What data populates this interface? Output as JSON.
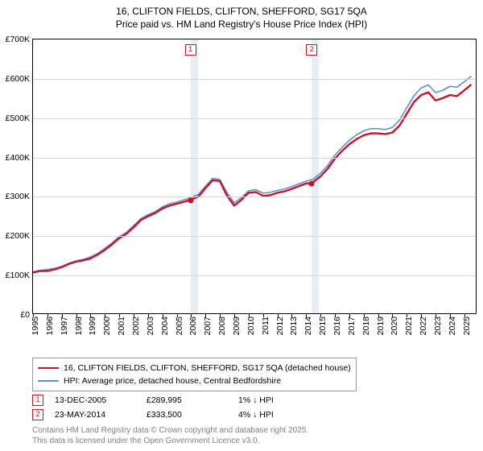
{
  "title": {
    "line1": "16, CLIFTON FIELDS, CLIFTON, SHEFFORD, SG17 5QA",
    "line2": "Price paid vs. HM Land Registry's House Price Index (HPI)"
  },
  "chart": {
    "type": "line",
    "background_color": "#ffffff",
    "border_color": "#000000",
    "grid_color": "#d7d7d7",
    "band_color": "#e6edf7",
    "x": {
      "min": 1995,
      "max": 2025.8,
      "ticks": [
        1995,
        1996,
        1997,
        1998,
        1999,
        2000,
        2001,
        2002,
        2003,
        2004,
        2005,
        2006,
        2007,
        2008,
        2009,
        2010,
        2011,
        2012,
        2013,
        2014,
        2015,
        2016,
        2017,
        2018,
        2019,
        2020,
        2021,
        2022,
        2023,
        2024,
        2025
      ]
    },
    "y": {
      "min": 0,
      "max": 700,
      "ticks": [
        0,
        100,
        200,
        300,
        400,
        500,
        600,
        700
      ],
      "prefix": "£",
      "suffix": "K"
    },
    "bands": [
      {
        "from": 2005.95,
        "to": 2006.5
      },
      {
        "from": 2014.4,
        "to": 2014.9
      }
    ],
    "markers": [
      {
        "n": "1",
        "year": 2005.95,
        "color": "#cf1020"
      },
      {
        "n": "2",
        "year": 2014.4,
        "color": "#cf1020"
      }
    ],
    "series": [
      {
        "name": "price_paid",
        "color": "#cf1020",
        "width": 2.4,
        "legend": "16, CLIFTON FIELDS, CLIFTON, SHEFFORD, SG17 5QA (detached house)",
        "points": [
          [
            1995,
            104
          ],
          [
            1995.5,
            108
          ],
          [
            1996,
            108
          ],
          [
            1996.5,
            112
          ],
          [
            1997,
            118
          ],
          [
            1997.5,
            126
          ],
          [
            1998,
            132
          ],
          [
            1998.5,
            135
          ],
          [
            1999,
            140
          ],
          [
            1999.5,
            150
          ],
          [
            2000,
            162
          ],
          [
            2000.5,
            176
          ],
          [
            2001,
            192
          ],
          [
            2001.5,
            203
          ],
          [
            2002,
            220
          ],
          [
            2002.5,
            238
          ],
          [
            2003,
            248
          ],
          [
            2003.5,
            256
          ],
          [
            2004,
            268
          ],
          [
            2004.5,
            275
          ],
          [
            2005,
            280
          ],
          [
            2005.5,
            285
          ],
          [
            2005.95,
            290
          ],
          [
            2006.5,
            298
          ],
          [
            2007,
            320
          ],
          [
            2007.5,
            340
          ],
          [
            2008,
            338
          ],
          [
            2008.5,
            300
          ],
          [
            2009,
            275
          ],
          [
            2009.5,
            290
          ],
          [
            2010,
            308
          ],
          [
            2010.5,
            310
          ],
          [
            2011,
            300
          ],
          [
            2011.5,
            302
          ],
          [
            2012,
            308
          ],
          [
            2012.5,
            312
          ],
          [
            2013,
            318
          ],
          [
            2013.5,
            325
          ],
          [
            2014,
            332
          ],
          [
            2014.4,
            333
          ],
          [
            2015,
            350
          ],
          [
            2015.5,
            370
          ],
          [
            2016,
            395
          ],
          [
            2016.5,
            415
          ],
          [
            2017,
            432
          ],
          [
            2017.5,
            445
          ],
          [
            2018,
            455
          ],
          [
            2018.5,
            460
          ],
          [
            2019,
            460
          ],
          [
            2019.5,
            458
          ],
          [
            2020,
            462
          ],
          [
            2020.5,
            480
          ],
          [
            2021,
            510
          ],
          [
            2021.5,
            540
          ],
          [
            2022,
            558
          ],
          [
            2022.5,
            565
          ],
          [
            2023,
            544
          ],
          [
            2023.5,
            550
          ],
          [
            2024,
            558
          ],
          [
            2024.5,
            555
          ],
          [
            2025,
            570
          ],
          [
            2025.5,
            585
          ]
        ],
        "dots": [
          [
            2005.95,
            290
          ],
          [
            2014.4,
            333
          ]
        ]
      },
      {
        "name": "hpi",
        "color": "#5b8fd6",
        "width": 1.6,
        "legend": "HPI: Average price, detached house, Central Bedfordshire",
        "points": [
          [
            1995,
            106
          ],
          [
            1995.5,
            110
          ],
          [
            1996,
            112
          ],
          [
            1996.5,
            115
          ],
          [
            1997,
            120
          ],
          [
            1997.5,
            128
          ],
          [
            1998,
            134
          ],
          [
            1998.5,
            138
          ],
          [
            1999,
            144
          ],
          [
            1999.5,
            153
          ],
          [
            2000,
            166
          ],
          [
            2000.5,
            180
          ],
          [
            2001,
            196
          ],
          [
            2001.5,
            207
          ],
          [
            2002,
            224
          ],
          [
            2002.5,
            242
          ],
          [
            2003,
            252
          ],
          [
            2003.5,
            260
          ],
          [
            2004,
            272
          ],
          [
            2004.5,
            280
          ],
          [
            2005,
            284
          ],
          [
            2005.5,
            290
          ],
          [
            2006,
            296
          ],
          [
            2006.5,
            304
          ],
          [
            2007,
            325
          ],
          [
            2007.5,
            345
          ],
          [
            2008,
            342
          ],
          [
            2008.5,
            308
          ],
          [
            2009,
            282
          ],
          [
            2009.5,
            296
          ],
          [
            2010,
            313
          ],
          [
            2010.5,
            316
          ],
          [
            2011,
            307
          ],
          [
            2011.5,
            309
          ],
          [
            2012,
            314
          ],
          [
            2012.5,
            318
          ],
          [
            2013,
            324
          ],
          [
            2013.5,
            331
          ],
          [
            2014,
            338
          ],
          [
            2014.5,
            343
          ],
          [
            2015,
            358
          ],
          [
            2015.5,
            378
          ],
          [
            2016,
            404
          ],
          [
            2016.5,
            424
          ],
          [
            2017,
            442
          ],
          [
            2017.5,
            456
          ],
          [
            2018,
            466
          ],
          [
            2018.5,
            472
          ],
          [
            2019,
            472
          ],
          [
            2019.5,
            470
          ],
          [
            2020,
            475
          ],
          [
            2020.5,
            494
          ],
          [
            2021,
            525
          ],
          [
            2021.5,
            556
          ],
          [
            2022,
            576
          ],
          [
            2022.5,
            584
          ],
          [
            2023,
            564
          ],
          [
            2023.5,
            570
          ],
          [
            2024,
            580
          ],
          [
            2024.5,
            578
          ],
          [
            2025,
            592
          ],
          [
            2025.5,
            606
          ]
        ]
      }
    ]
  },
  "sales": [
    {
      "n": "1",
      "date": "13-DEC-2005",
      "price": "£289,995",
      "delta": "1% ↓ HPI",
      "color": "#cf1020"
    },
    {
      "n": "2",
      "date": "23-MAY-2014",
      "price": "£333,500",
      "delta": "4% ↓ HPI",
      "color": "#cf1020"
    }
  ],
  "footer": {
    "line1": "Contains HM Land Registry data © Crown copyright and database right 2025.",
    "line2": "This data is licensed under the Open Government Licence v3.0."
  }
}
